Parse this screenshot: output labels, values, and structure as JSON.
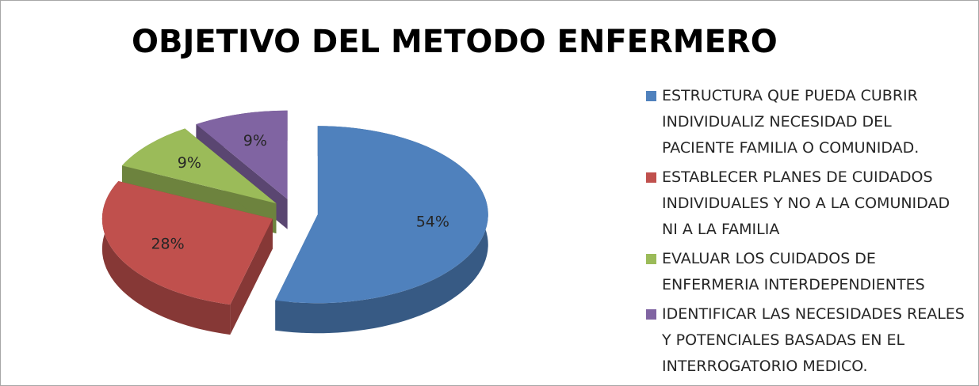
{
  "chart_data": {
    "type": "pie",
    "title": "OBJETIVO DEL METODO ENFERMERO",
    "categories": [
      "ESTRUCTURA QUE PUEDA CUBRIR INDIVIDUALIZ NECESIDAD DEL PACIENTE FAMILIA O COMUNIDAD.",
      "ESTABLECER PLANES DE CUIDADOS INDIVIDUALES Y NO A LA COMUNIDAD NI A LA FAMILIA",
      "EVALUAR LOS CUIDADOS DE ENFERMERIA INTERDEPENDIENTES",
      "IDENTIFICAR LAS NECESIDADES REALES Y POTENCIALES BASADAS EN EL INTERROGATORIO MEDICO."
    ],
    "values": [
      54,
      28,
      9,
      9
    ],
    "value_labels": [
      "54%",
      "28%",
      "9%",
      "9%"
    ],
    "colors": [
      "#4f81bd",
      "#c0504d",
      "#9bbb59",
      "#8064a2"
    ]
  }
}
